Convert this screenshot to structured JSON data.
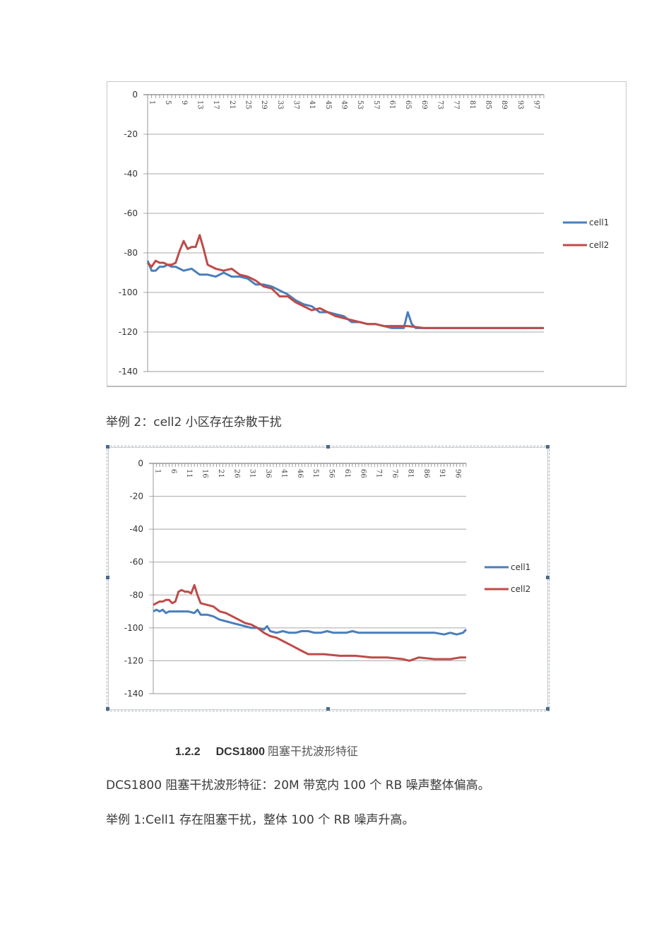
{
  "document": {
    "caption_example2": "举例 2：cell2 小区存在杂散干扰",
    "section": {
      "number": "1.2.2",
      "title_en": "DCS1800",
      "title_cn": "阻塞干扰波形特征"
    },
    "paragraphs": [
      "DCS1800 阻塞干扰波形特征：20M 带宽内 100 个 RB 噪声整体偏高。",
      "举例 1:Cell1 存在阻塞干扰，整体 100 个 RB 噪声升高。"
    ]
  },
  "colors": {
    "cell1": "#4a7ebb",
    "cell2": "#be4b48",
    "grid": "#9a9a9a"
  },
  "chart_data": [
    {
      "type": "line",
      "title": "",
      "xlabel": "",
      "ylabel": "",
      "ylim": [
        -140,
        0
      ],
      "yticks": [
        0,
        -20,
        -40,
        -60,
        -80,
        -100,
        -120,
        -140
      ],
      "xtick_labels": [
        "1",
        "5",
        "9",
        "13",
        "17",
        "21",
        "25",
        "29",
        "33",
        "37",
        "41",
        "45",
        "49",
        "53",
        "57",
        "61",
        "65",
        "69",
        "73",
        "77",
        "81",
        "85",
        "89",
        "93",
        "97"
      ],
      "x_range": [
        1,
        100
      ],
      "grid": true,
      "legend_position": "right",
      "series": [
        {
          "name": "cell1",
          "x": [
            1,
            2,
            3,
            4,
            5,
            6,
            7,
            8,
            9,
            10,
            12,
            14,
            16,
            18,
            20,
            22,
            24,
            26,
            28,
            30,
            32,
            34,
            36,
            38,
            40,
            42,
            44,
            46,
            48,
            50,
            52,
            54,
            56,
            58,
            60,
            62,
            64,
            65,
            66,
            67,
            68,
            70,
            75,
            80,
            85,
            90,
            95,
            100
          ],
          "values": [
            -84,
            -89,
            -89,
            -87,
            -87,
            -86,
            -87,
            -87,
            -88,
            -89,
            -88,
            -91,
            -91,
            -92,
            -90,
            -92,
            -92,
            -93,
            -96,
            -96,
            -97,
            -99,
            -101,
            -104,
            -106,
            -107,
            -110,
            -110,
            -111,
            -112,
            -115,
            -115,
            -116,
            -116,
            -117,
            -118,
            -118,
            -118,
            -110,
            -116,
            -118,
            -118,
            -118,
            -118,
            -118,
            -118,
            -118,
            -118
          ]
        },
        {
          "name": "cell2",
          "x": [
            1,
            2,
            3,
            4,
            5,
            6,
            7,
            8,
            9,
            10,
            11,
            12,
            13,
            14,
            15,
            16,
            17,
            18,
            20,
            22,
            24,
            26,
            28,
            30,
            32,
            34,
            36,
            38,
            40,
            42,
            44,
            46,
            48,
            50,
            52,
            54,
            56,
            58,
            60,
            62,
            64,
            66,
            70,
            75,
            80,
            85,
            90,
            95,
            100
          ],
          "values": [
            -85,
            -87,
            -84,
            -85,
            -85,
            -86,
            -86,
            -85,
            -79,
            -74,
            -78,
            -77,
            -77,
            -71,
            -78,
            -86,
            -87,
            -88,
            -89,
            -88,
            -91,
            -92,
            -94,
            -97,
            -98,
            -102,
            -102,
            -105,
            -107,
            -109,
            -108,
            -110,
            -112,
            -113,
            -114,
            -115,
            -116,
            -116,
            -117,
            -117,
            -117,
            -117,
            -118,
            -118,
            -118,
            -118,
            -118,
            -118,
            -118
          ]
        }
      ]
    },
    {
      "type": "line",
      "title": "",
      "xlabel": "",
      "ylabel": "",
      "ylim": [
        -140,
        0
      ],
      "yticks": [
        0,
        -20,
        -40,
        -60,
        -80,
        -100,
        -120,
        -140
      ],
      "xtick_labels": [
        "1",
        "6",
        "11",
        "16",
        "21",
        "26",
        "31",
        "36",
        "41",
        "46",
        "51",
        "56",
        "61",
        "66",
        "71",
        "76",
        "81",
        "86",
        "91",
        "96"
      ],
      "x_range": [
        1,
        100
      ],
      "grid": true,
      "legend_position": "right",
      "series": [
        {
          "name": "cell1",
          "x": [
            1,
            2,
            3,
            4,
            5,
            6,
            8,
            10,
            12,
            14,
            15,
            16,
            18,
            20,
            22,
            24,
            26,
            28,
            30,
            32,
            34,
            36,
            37,
            38,
            40,
            42,
            44,
            46,
            48,
            50,
            52,
            54,
            56,
            58,
            60,
            62,
            64,
            66,
            70,
            75,
            80,
            85,
            90,
            93,
            95,
            97,
            99,
            100
          ],
          "values": [
            -90,
            -89,
            -90,
            -89,
            -91,
            -90,
            -90,
            -90,
            -90,
            -91,
            -89,
            -92,
            -92,
            -93,
            -95,
            -96,
            -97,
            -98,
            -99,
            -100,
            -100,
            -101,
            -99,
            -102,
            -103,
            -102,
            -103,
            -103,
            -102,
            -102,
            -103,
            -103,
            -102,
            -103,
            -103,
            -103,
            -102,
            -103,
            -103,
            -103,
            -103,
            -103,
            -103,
            -104,
            -103,
            -104,
            -103,
            -101
          ]
        },
        {
          "name": "cell2",
          "x": [
            1,
            2,
            3,
            4,
            5,
            6,
            7,
            8,
            9,
            10,
            11,
            12,
            13,
            14,
            15,
            16,
            18,
            20,
            22,
            24,
            26,
            28,
            30,
            32,
            34,
            36,
            38,
            40,
            42,
            44,
            46,
            48,
            50,
            55,
            60,
            65,
            70,
            75,
            80,
            82,
            85,
            90,
            95,
            98,
            100
          ],
          "values": [
            -86,
            -85,
            -84,
            -84,
            -83,
            -83,
            -85,
            -84,
            -78,
            -77,
            -78,
            -78,
            -79,
            -74,
            -80,
            -85,
            -86,
            -87,
            -90,
            -91,
            -93,
            -95,
            -97,
            -98,
            -100,
            -103,
            -105,
            -106,
            -108,
            -110,
            -112,
            -114,
            -116,
            -116,
            -117,
            -117,
            -118,
            -118,
            -119,
            -120,
            -118,
            -119,
            -119,
            -118,
            -118
          ]
        }
      ]
    }
  ]
}
